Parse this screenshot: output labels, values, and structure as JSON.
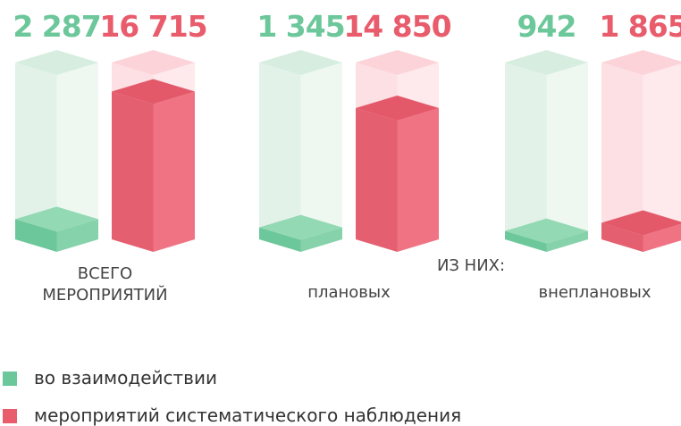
{
  "chart_data": {
    "type": "bar",
    "categories": [
      "ВСЕГО МЕРОПРИЯТИЙ",
      "плановых",
      "внеплановых"
    ],
    "annotation": "ИЗ НИХ:",
    "series": [
      {
        "name": "во взаимодействии",
        "color": "#6cc79a",
        "values": [
          2287,
          1345,
          942
        ],
        "value_labels": [
          "2 287",
          "1 345",
          "942"
        ]
      },
      {
        "name": "мероприятий систематического наблюдения",
        "color": "#e85c6c",
        "values": [
          16715,
          14850,
          1865
        ],
        "value_labels": [
          "16 715",
          "14 850",
          "1 865"
        ]
      }
    ],
    "ylim": [
      0,
      20000
    ]
  }
}
